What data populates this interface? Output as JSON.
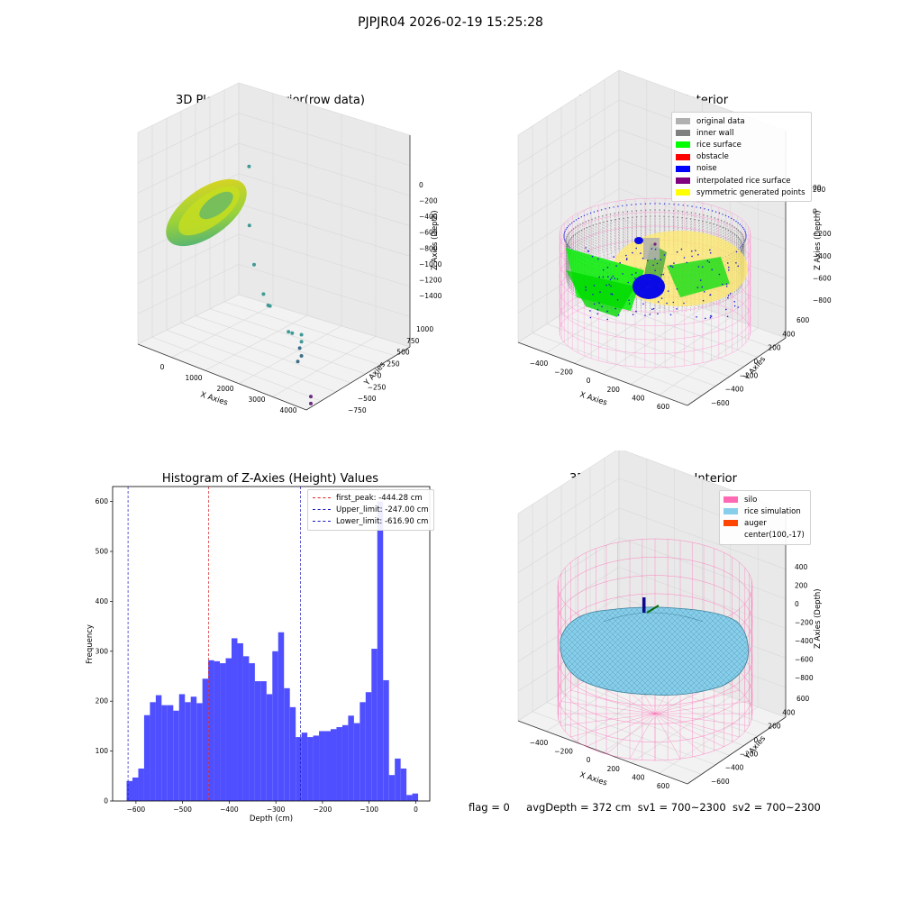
{
  "figure_title": "PJPJR04 2026-02-19 15:25:28",
  "footer": {
    "flag": "flag = 0",
    "avg_depth": "avgDepth = 372 cm",
    "sv1": "sv1 = 700~2300",
    "sv2": "sv2 = 700~2300"
  },
  "colors": {
    "hist_bar": "#4b4bff",
    "first_peak": "#d62728",
    "limit": "#1a1ab8",
    "silo": "#ff69b4",
    "rice_sim": "#87ceeb",
    "auger": "#ff4500"
  },
  "chart_data": [
    {
      "type": "scatter",
      "title": "3D Plot of Silo Interior(row data)",
      "xlabel": "X Axies",
      "ylabel": "Y Axies",
      "zlabel": "Z Axies (Depth)",
      "x_ticks": [
        "0",
        "1000",
        "2000",
        "3000",
        "4000"
      ],
      "y_ticks": [
        "−750",
        "−500",
        "−250",
        "0",
        "250",
        "500",
        "750",
        "1000"
      ],
      "z_ticks": [
        "0",
        "−200",
        "−400",
        "−600",
        "−800",
        "−1000",
        "−1200",
        "−1400"
      ],
      "points": [
        {
          "x": 1200,
          "y": 300,
          "z": -300
        },
        {
          "x": 1500,
          "y": 100,
          "z": -650
        },
        {
          "x": 1700,
          "y": 50,
          "z": -900
        },
        {
          "x": 2100,
          "y": -50,
          "z": -1050
        },
        {
          "x": 2300,
          "y": -100,
          "z": -1100
        },
        {
          "x": 2350,
          "y": -100,
          "z": -1100
        },
        {
          "x": 3000,
          "y": -200,
          "z": -1200
        },
        {
          "x": 3100,
          "y": -200,
          "z": -1200
        },
        {
          "x": 3500,
          "y": -300,
          "z": -1150
        },
        {
          "x": 3500,
          "y": -300,
          "z": -1200
        },
        {
          "x": 3450,
          "y": -300,
          "z": -1250
        },
        {
          "x": 3400,
          "y": -300,
          "z": -1350
        },
        {
          "x": 3500,
          "y": -300,
          "z": -1300
        },
        {
          "x": 4200,
          "y": -600,
          "z": -1450
        },
        {
          "x": 4200,
          "y": -600,
          "z": -1500
        }
      ]
    },
    {
      "type": "scatter",
      "title": "3D classify of Silo Interior",
      "xlabel": "X Axies",
      "ylabel": "Y Axies",
      "zlabel": "Z Axies (Depth)",
      "x_ticks": [
        "−400",
        "−200",
        "0",
        "200",
        "400",
        "600"
      ],
      "y_ticks": [
        "−600",
        "−400",
        "−200",
        "0",
        "200",
        "400",
        "600"
      ],
      "z_ticks": [
        "200",
        "0",
        "−200",
        "−400",
        "−600",
        "−800"
      ],
      "legend": [
        {
          "label": "original data",
          "color": "#b0b0b0"
        },
        {
          "label": "inner wall",
          "color": "#808080"
        },
        {
          "label": "rice surface",
          "color": "#00ff00"
        },
        {
          "label": "obstacle",
          "color": "#ff0000"
        },
        {
          "label": "noise",
          "color": "#0000ff"
        },
        {
          "label": "interpolated rice surface",
          "color": "#800080"
        },
        {
          "label": "symmetric generated points",
          "color": "#ffff00"
        }
      ],
      "z_partial_tick": "00"
    },
    {
      "type": "bar",
      "title": "Histogram of Z-Axies (Height) Values",
      "xlabel": "Depth (cm)",
      "ylabel": "Frequency",
      "xlim": [
        -650,
        30
      ],
      "ylim": [
        0,
        630
      ],
      "x_ticks": [
        -600,
        -500,
        -400,
        -300,
        -200,
        -100,
        0
      ],
      "y_ticks": [
        0,
        100,
        200,
        300,
        400,
        500,
        600
      ],
      "bin_start": -620,
      "bin_width": 12.5,
      "values": [
        40,
        47,
        65,
        172,
        198,
        212,
        192,
        192,
        181,
        214,
        198,
        209,
        196,
        245,
        282,
        280,
        276,
        286,
        326,
        316,
        290,
        276,
        240,
        240,
        214,
        300,
        338,
        226,
        188,
        128,
        137,
        128,
        131,
        140,
        140,
        144,
        148,
        152,
        171,
        156,
        198,
        218,
        305,
        600,
        242,
        52,
        85,
        65,
        12,
        15
      ],
      "lines": [
        {
          "label": "first_peak: -444.28 cm",
          "x": -444.28,
          "color": "#d62728"
        },
        {
          "label": "Upper_limit: -247.00 cm",
          "x": -247.0,
          "color": "#1a1ab8"
        },
        {
          "label": "Lower_limit: -616.90 cm",
          "x": -616.9,
          "color": "#1a1ab8"
        }
      ]
    },
    {
      "type": "scatter",
      "title": "3D simulation of Silo Interior",
      "xlabel": "X Axies",
      "ylabel": "Y Axies",
      "zlabel": "Z Axies (Depth)",
      "x_ticks": [
        "−400",
        "−200",
        "0",
        "200",
        "400",
        "600"
      ],
      "y_ticks": [
        "−600",
        "−400",
        "−200",
        "0",
        "200",
        "400",
        "600"
      ],
      "z_ticks": [
        "400",
        "200",
        "0",
        "−200",
        "−400",
        "−600",
        "−800"
      ],
      "legend": [
        {
          "label": "silo",
          "color": "#ff69b4"
        },
        {
          "label": "rice simulation",
          "color": "#87ceeb"
        },
        {
          "label": "auger",
          "color": "#ff4500"
        },
        {
          "label": "center(100,-17)",
          "color": ""
        }
      ]
    }
  ]
}
